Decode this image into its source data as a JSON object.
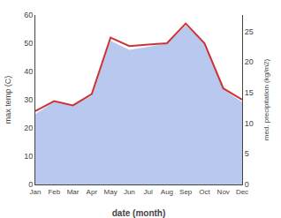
{
  "chart_data": {
    "type": "line",
    "x_label": "date (month)",
    "y_label": "max temp (C)",
    "y2_label": "med. precipitation (kg/m2)",
    "categories": [
      "Jan",
      "Feb",
      "Mar",
      "Apr",
      "May",
      "Jun",
      "Jul",
      "Aug",
      "Sep",
      "Oct",
      "Nov",
      "Dec"
    ],
    "series": [
      {
        "type": "area",
        "axis": "y2",
        "color": "#b8c8ee",
        "values": [
          11.5,
          13.5,
          13,
          14.5,
          23.5,
          22,
          22.5,
          23,
          26,
          23,
          15.5,
          13.5
        ]
      },
      {
        "type": "line",
        "color": "#cc3333",
        "values": [
          26,
          29.5,
          28,
          32,
          52,
          49,
          49.5,
          50,
          57,
          50,
          34,
          30
        ]
      }
    ],
    "ylim": [
      0,
      60
    ],
    "yticks": [
      0,
      10,
      20,
      30,
      40,
      50,
      60
    ],
    "y2lim": [
      0,
      27.69
    ],
    "y2ticks": [
      0,
      5,
      10,
      15,
      20,
      25
    ],
    "grid": false
  }
}
